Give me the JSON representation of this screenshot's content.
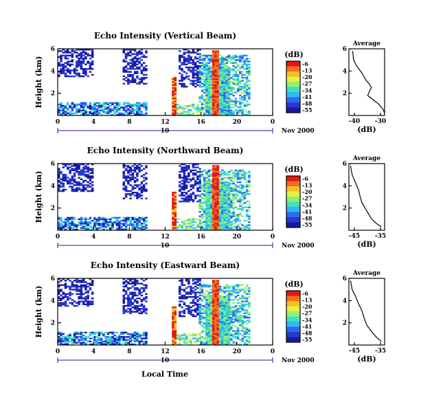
{
  "panels": [
    {
      "title": "Echo Intensity (Vertical Beam)",
      "date_label": "Nov 2000",
      "day_label": "10",
      "avg": {
        "title": "Average",
        "xlabel": "(dB)",
        "xticks": [
          "-40",
          "-30"
        ]
      }
    },
    {
      "title": "Echo Intensity (Northward Beam)",
      "date_label": "Nov 2000",
      "day_label": "10",
      "avg": {
        "title": "Average",
        "xlabel": "(dB)",
        "xticks": [
          "-45",
          "-35"
        ]
      }
    },
    {
      "title": "Echo Intensity (Eastward Beam)",
      "date_label": "Nov 2000",
      "day_label": "10",
      "avg": {
        "title": "Average",
        "xlabel": "(dB)",
        "xticks": [
          "-45",
          "-35"
        ]
      }
    }
  ],
  "ylabel": "Height (km)",
  "xlabel": "Local Time",
  "yticks": [
    "6",
    "4",
    "2"
  ],
  "xticks": [
    "0",
    "4",
    "8",
    "12",
    "16",
    "20",
    "0"
  ],
  "colorbar": {
    "unit": "(dB)",
    "ticks": [
      "-6",
      "-13",
      "-20",
      "-27",
      "-34",
      "-41",
      "-48",
      "-55"
    ],
    "colors": [
      "#e81515",
      "#f07020",
      "#f4c020",
      "#e8f040",
      "#90f070",
      "#40e0c0",
      "#30b8f0",
      "#3068f0",
      "#2838d0",
      "#1818a0"
    ]
  },
  "chart_data": [
    {
      "type": "heatmap",
      "title": "Echo Intensity (Vertical Beam)",
      "xlabel": "Local Time",
      "ylabel": "Height (km)",
      "xlim": [
        0,
        24
      ],
      "ylim": [
        0,
        6
      ],
      "zlim": [
        -55,
        -6
      ],
      "zlabel": "(dB)"
    },
    {
      "type": "line",
      "title": "Average",
      "xlabel": "(dB)",
      "ylim": [
        0,
        6
      ],
      "xlim": [
        -44,
        -25
      ],
      "x": [
        -42,
        -41.5,
        -40,
        -37,
        -35,
        -33,
        -32,
        -33,
        -34,
        -31,
        -28,
        -26,
        -25
      ],
      "y": [
        5.8,
        5.0,
        4.5,
        3.8,
        3.2,
        2.8,
        2.5,
        2.2,
        1.8,
        1.4,
        1.0,
        0.6,
        0.2
      ]
    },
    {
      "type": "heatmap",
      "title": "Echo Intensity (Northward Beam)",
      "xlabel": "Local Time",
      "ylabel": "Height (km)",
      "xlim": [
        0,
        24
      ],
      "ylim": [
        0,
        6
      ],
      "zlim": [
        -55,
        -6
      ],
      "zlabel": "(dB)"
    },
    {
      "type": "line",
      "title": "Average",
      "xlabel": "(dB)",
      "ylim": [
        0,
        6
      ],
      "xlim": [
        -46,
        -35
      ],
      "x": [
        -45.5,
        -45,
        -44,
        -43,
        -42.5,
        -42,
        -41,
        -40,
        -39,
        -37.5,
        -36
      ],
      "y": [
        5.8,
        5.0,
        4.3,
        3.6,
        3.0,
        2.5,
        2.0,
        1.5,
        1.0,
        0.6,
        0.3
      ]
    },
    {
      "type": "heatmap",
      "title": "Echo Intensity (Eastward Beam)",
      "xlabel": "Local Time",
      "ylabel": "Height (km)",
      "xlim": [
        0,
        24
      ],
      "ylim": [
        0,
        6
      ],
      "zlim": [
        -55,
        -6
      ],
      "zlabel": "(dB)"
    },
    {
      "type": "line",
      "title": "Average",
      "xlabel": "(dB)",
      "ylim": [
        0,
        6
      ],
      "xlim": [
        -46,
        -35
      ],
      "x": [
        -45.5,
        -45,
        -44,
        -43,
        -42,
        -41.5,
        -41,
        -40.5,
        -39,
        -37.5,
        -36
      ],
      "y": [
        5.8,
        5.0,
        4.4,
        3.7,
        3.1,
        2.6,
        2.2,
        1.8,
        1.2,
        0.7,
        0.3
      ]
    }
  ]
}
